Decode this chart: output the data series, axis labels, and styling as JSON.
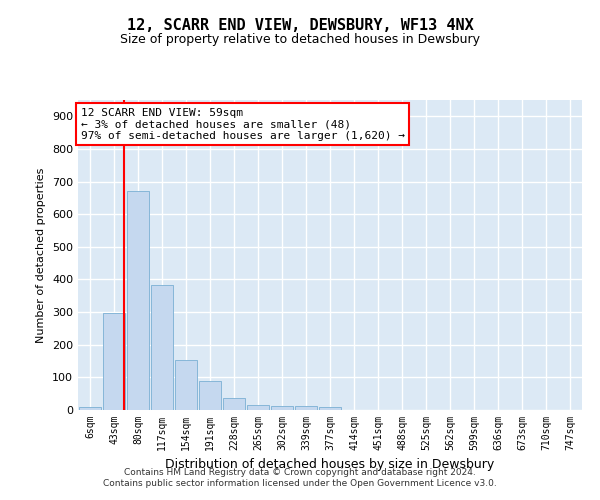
{
  "title": "12, SCARR END VIEW, DEWSBURY, WF13 4NX",
  "subtitle": "Size of property relative to detached houses in Dewsbury",
  "xlabel": "Distribution of detached houses by size in Dewsbury",
  "ylabel": "Number of detached properties",
  "categories": [
    "6sqm",
    "43sqm",
    "80sqm",
    "117sqm",
    "154sqm",
    "191sqm",
    "228sqm",
    "265sqm",
    "302sqm",
    "339sqm",
    "377sqm",
    "414sqm",
    "451sqm",
    "488sqm",
    "525sqm",
    "562sqm",
    "599sqm",
    "636sqm",
    "673sqm",
    "710sqm",
    "747sqm"
  ],
  "values": [
    8,
    297,
    672,
    383,
    153,
    88,
    38,
    14,
    11,
    11,
    8,
    0,
    0,
    0,
    0,
    0,
    0,
    0,
    0,
    0,
    0
  ],
  "bar_color": "#c5d8ef",
  "bar_edge_color": "#7aafd4",
  "annotation_text": "12 SCARR END VIEW: 59sqm\n← 3% of detached houses are smaller (48)\n97% of semi-detached houses are larger (1,620) →",
  "vline_x": 1.43,
  "grid_color": "#ffffff",
  "bg_color": "#dce9f5",
  "footer_line1": "Contains HM Land Registry data © Crown copyright and database right 2024.",
  "footer_line2": "Contains public sector information licensed under the Open Government Licence v3.0.",
  "ylim": [
    0,
    950
  ],
  "yticks": [
    0,
    100,
    200,
    300,
    400,
    500,
    600,
    700,
    800,
    900
  ]
}
